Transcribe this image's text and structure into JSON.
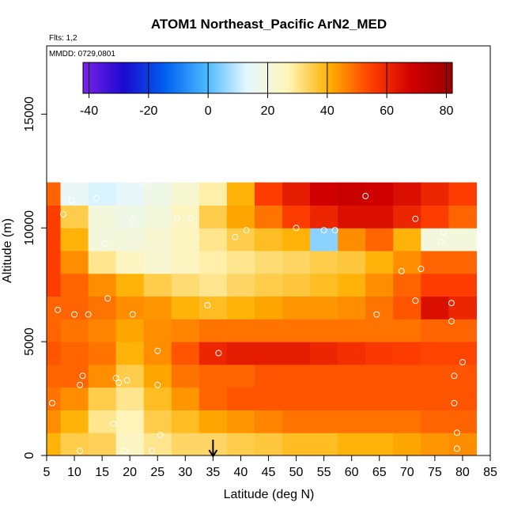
{
  "chart_data": {
    "type": "heatmap",
    "title": "ATOM1 Northeast_Pacific ArN2_MED",
    "subtitle": "Flts: 1,2",
    "annotation": "MMDD: 0729,0801",
    "xlabel": "Latitude (deg N)",
    "ylabel": "Altitude (m)",
    "xlim": [
      5,
      85
    ],
    "ylim": [
      0,
      18000
    ],
    "x_ticks": [
      5,
      10,
      15,
      20,
      25,
      30,
      35,
      40,
      45,
      50,
      55,
      60,
      65,
      70,
      75,
      80,
      85
    ],
    "y_ticks": [
      0,
      5000,
      10000,
      15000
    ],
    "colorbar": {
      "range": [
        -42,
        82
      ],
      "ticks": [
        -40,
        -20,
        0,
        20,
        40,
        60,
        80
      ],
      "colors": [
        "#7b22e6",
        "#1a0ad0",
        "#0060f0",
        "#4ab8ff",
        "#e6f8ff",
        "#fff5b8",
        "#ffb000",
        "#ff4000",
        "#d00000",
        "#9b0000"
      ]
    },
    "arrow_marker_x": 35,
    "field": {
      "x": [
        5,
        10,
        15,
        20,
        25,
        30,
        35,
        40,
        45,
        50,
        55,
        60,
        65,
        70,
        75,
        80
      ],
      "y": [
        500,
        1500,
        2500,
        3500,
        4500,
        5500,
        6500,
        7500,
        8500,
        9500,
        10500,
        11500
      ],
      "z": [
        [
          40,
          35,
          34,
          25,
          30,
          33,
          33,
          35,
          36,
          38,
          38,
          40,
          40,
          42,
          44,
          45
        ],
        [
          45,
          40,
          30,
          27,
          35,
          38,
          42,
          44,
          46,
          48,
          48,
          48,
          48,
          48,
          50,
          50
        ],
        [
          48,
          45,
          35,
          30,
          38,
          44,
          50,
          52,
          52,
          52,
          52,
          52,
          52,
          52,
          52,
          52
        ],
        [
          50,
          50,
          45,
          35,
          42,
          48,
          50,
          50,
          52,
          52,
          52,
          52,
          52,
          52,
          52,
          52
        ],
        [
          52,
          50,
          48,
          40,
          45,
          52,
          60,
          62,
          62,
          62,
          60,
          58,
          56,
          55,
          54,
          54
        ],
        [
          50,
          48,
          46,
          42,
          45,
          46,
          48,
          48,
          48,
          48,
          48,
          48,
          48,
          48,
          50,
          50
        ],
        [
          50,
          50,
          48,
          45,
          44,
          40,
          38,
          40,
          42,
          44,
          44,
          45,
          48,
          52,
          65,
          60
        ],
        [
          55,
          50,
          45,
          40,
          35,
          32,
          30,
          33,
          35,
          36,
          38,
          40,
          45,
          50,
          55,
          55
        ],
        [
          55,
          45,
          30,
          25,
          22,
          25,
          28,
          30,
          32,
          33,
          35,
          36,
          40,
          45,
          50,
          50
        ],
        [
          55,
          40,
          20,
          20,
          22,
          25,
          30,
          35,
          38,
          40,
          5,
          45,
          50,
          40,
          20,
          20
        ],
        [
          55,
          35,
          20,
          18,
          20,
          25,
          35,
          42,
          48,
          55,
          60,
          65,
          65,
          60,
          55,
          50
        ],
        [
          50,
          15,
          12,
          14,
          18,
          22,
          28,
          40,
          55,
          62,
          68,
          70,
          68,
          65,
          60,
          55
        ]
      ]
    },
    "points": [
      {
        "x": 6,
        "y": 2300
      },
      {
        "x": 7,
        "y": 6400
      },
      {
        "x": 8,
        "y": 10600
      },
      {
        "x": 9.5,
        "y": 11200
      },
      {
        "x": 10,
        "y": 6200
      },
      {
        "x": 11,
        "y": 3100
      },
      {
        "x": 11.5,
        "y": 3500
      },
      {
        "x": 11,
        "y": 200
      },
      {
        "x": 12.5,
        "y": 6200
      },
      {
        "x": 14,
        "y": 11300
      },
      {
        "x": 15.5,
        "y": 9300
      },
      {
        "x": 16,
        "y": 6900
      },
      {
        "x": 17,
        "y": 1400
      },
      {
        "x": 17.5,
        "y": 3400
      },
      {
        "x": 18,
        "y": 3200
      },
      {
        "x": 19.5,
        "y": 3300
      },
      {
        "x": 19,
        "y": 200
      },
      {
        "x": 20.5,
        "y": 6200
      },
      {
        "x": 20.5,
        "y": 10300
      },
      {
        "x": 22.5,
        "y": 12000
      },
      {
        "x": 25,
        "y": 4600
      },
      {
        "x": 25,
        "y": 3100
      },
      {
        "x": 25.5,
        "y": 900
      },
      {
        "x": 24,
        "y": 200
      },
      {
        "x": 28.5,
        "y": 10400
      },
      {
        "x": 31,
        "y": 10400
      },
      {
        "x": 34,
        "y": 6600
      },
      {
        "x": 36,
        "y": 4500
      },
      {
        "x": 39,
        "y": 9600
      },
      {
        "x": 41,
        "y": 9900
      },
      {
        "x": 50,
        "y": 10000
      },
      {
        "x": 55,
        "y": 9900
      },
      {
        "x": 57,
        "y": 9900
      },
      {
        "x": 62.5,
        "y": 11400
      },
      {
        "x": 64.5,
        "y": 6200
      },
      {
        "x": 69,
        "y": 8100
      },
      {
        "x": 71.5,
        "y": 10400
      },
      {
        "x": 71.5,
        "y": 6800
      },
      {
        "x": 72.5,
        "y": 8200
      },
      {
        "x": 76,
        "y": 9400
      },
      {
        "x": 76.5,
        "y": 9800
      },
      {
        "x": 78,
        "y": 6700
      },
      {
        "x": 78,
        "y": 5900
      },
      {
        "x": 78.5,
        "y": 3500
      },
      {
        "x": 78.5,
        "y": 2300
      },
      {
        "x": 79,
        "y": 1000
      },
      {
        "x": 79,
        "y": 300
      },
      {
        "x": 80,
        "y": 4100
      }
    ]
  }
}
